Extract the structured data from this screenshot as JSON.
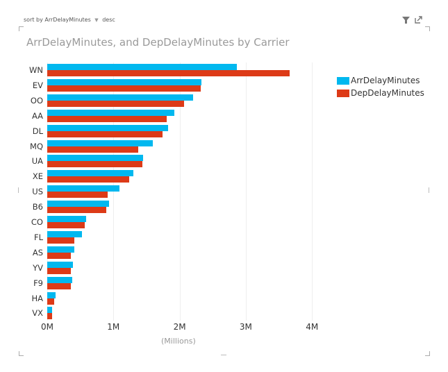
{
  "sort": {
    "prefix": "sort by",
    "field": "ArrDelayMinutes",
    "caret": "▼",
    "order": "desc"
  },
  "toolbar": {
    "filter_icon": "▼",
    "expand_icon": "⇱"
  },
  "colors": {
    "arr": "#01B8EF",
    "dep": "#DD3A17"
  },
  "chart_data": {
    "type": "bar",
    "orientation": "horizontal",
    "title": "ArrDelayMinutes, and DepDelayMinutes by Carrier",
    "xlabel": "(Millions)",
    "ylabel": "",
    "xlim": [
      0,
      4
    ],
    "xticks": [
      "0M",
      "1M",
      "2M",
      "3M",
      "4M"
    ],
    "legend_position": "right",
    "grid": true,
    "categories": [
      "WN",
      "EV",
      "OO",
      "AA",
      "DL",
      "MQ",
      "UA",
      "XE",
      "US",
      "B6",
      "CO",
      "FL",
      "AS",
      "YV",
      "F9",
      "HA",
      "VX"
    ],
    "series": [
      {
        "name": "ArrDelayMinutes",
        "values": [
          2.86,
          2.33,
          2.2,
          1.92,
          1.83,
          1.6,
          1.45,
          1.3,
          1.09,
          0.93,
          0.59,
          0.52,
          0.41,
          0.39,
          0.38,
          0.13,
          0.07
        ]
      },
      {
        "name": "DepDelayMinutes",
        "values": [
          3.66,
          2.32,
          2.07,
          1.8,
          1.74,
          1.37,
          1.44,
          1.24,
          0.91,
          0.89,
          0.57,
          0.41,
          0.36,
          0.36,
          0.36,
          0.1,
          0.07
        ]
      }
    ]
  }
}
